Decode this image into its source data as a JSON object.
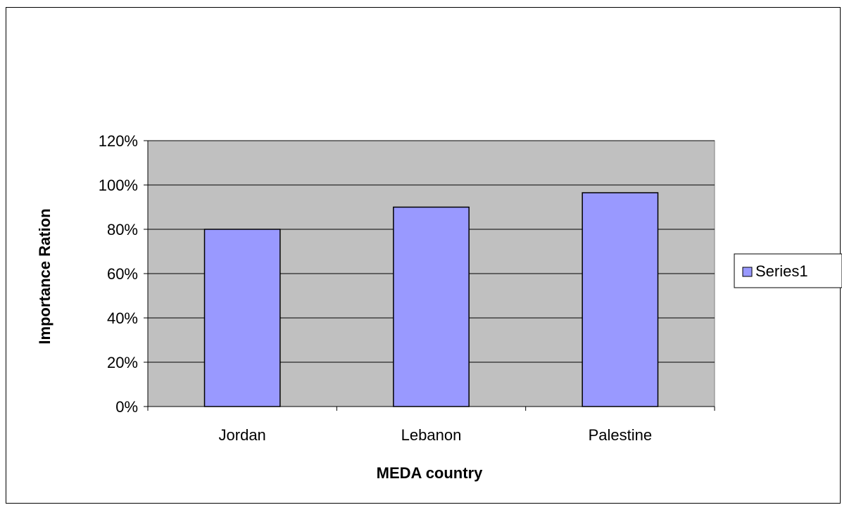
{
  "chart_data": {
    "type": "bar",
    "categories": [
      "Jordan",
      "Lebanon",
      "Palestine"
    ],
    "series": [
      {
        "name": "Series1",
        "values": [
          0.8,
          0.9,
          0.965
        ]
      }
    ],
    "title": "",
    "xlabel": "MEDA country",
    "ylabel": "Importance Ration",
    "ylim": [
      0,
      1.2
    ],
    "yticks": [
      "0%",
      "20%",
      "40%",
      "60%",
      "80%",
      "100%",
      "120%"
    ],
    "grid": true,
    "legend": "right",
    "colors": {
      "bar": "#9999ff",
      "plot_area": "#c0c0c0",
      "outline": "#000000"
    }
  }
}
